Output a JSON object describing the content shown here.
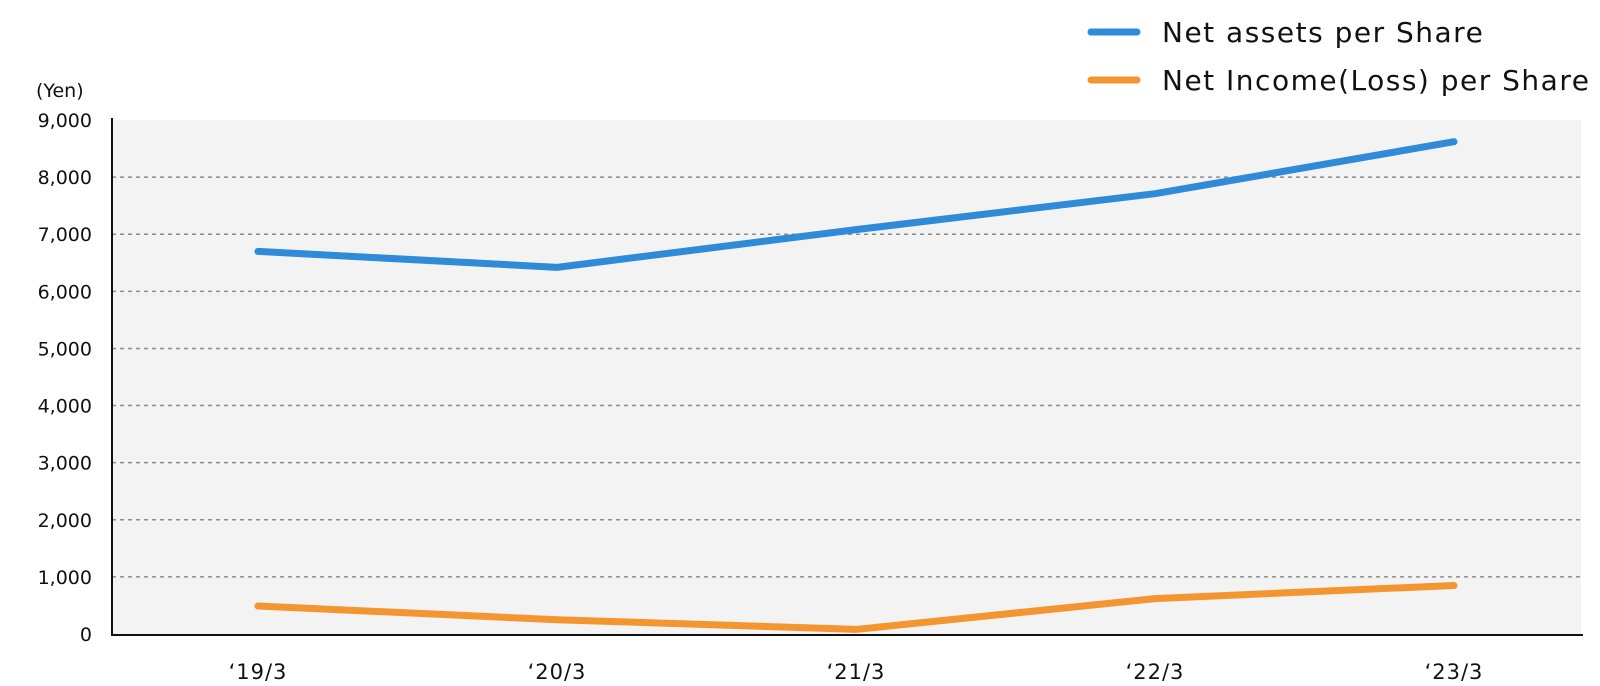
{
  "chart_data": {
    "type": "line",
    "y_unit": "(Yen)",
    "categories": [
      "‘19/3",
      "‘20/3",
      "‘21/3",
      "‘22/3",
      "‘23/3"
    ],
    "yticks": [
      "0",
      "1,000",
      "2,000",
      "3,000",
      "4,000",
      "5,000",
      "6,000",
      "7,000",
      "8,000",
      "9,000"
    ],
    "ylim": [
      0,
      9000
    ],
    "grid": true,
    "legend_position": "top-right",
    "series": [
      {
        "name": "Net assets per Share",
        "color": "#2f8ad8",
        "values": [
          6700,
          6420,
          7080,
          7710,
          8620
        ]
      },
      {
        "name": "Net Income(Loss) per Share",
        "color": "#f3962f",
        "values": [
          490,
          250,
          80,
          620,
          850
        ]
      }
    ]
  }
}
